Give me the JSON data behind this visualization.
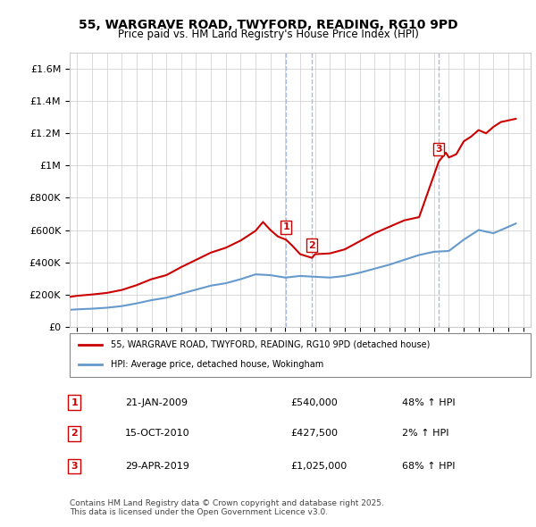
{
  "title": "55, WARGRAVE ROAD, TWYFORD, READING, RG10 9PD",
  "subtitle": "Price paid vs. HM Land Registry's House Price Index (HPI)",
  "legend_line1": "55, WARGRAVE ROAD, TWYFORD, READING, RG10 9PD (detached house)",
  "legend_line2": "HPI: Average price, detached house, Wokingham",
  "footer": "Contains HM Land Registry data © Crown copyright and database right 2025.\nThis data is licensed under the Open Government Licence v3.0.",
  "sales": [
    {
      "num": 1,
      "date": "21-JAN-2009",
      "price": 540000,
      "pct": "48%",
      "year": 2009.05
    },
    {
      "num": 2,
      "date": "15-OCT-2010",
      "price": 427500,
      "pct": "2%",
      "year": 2010.79
    },
    {
      "num": 3,
      "date": "29-APR-2019",
      "price": 1025000,
      "pct": "68%",
      "year": 2019.32
    }
  ],
  "red_color": "#cc0000",
  "blue_color": "#6699cc",
  "sale_marker_bg": "#ffffff",
  "sale_marker_border": "#cc0000",
  "dashed_color": "#aabbdd",
  "grid_color": "#cccccc",
  "ylim": [
    0,
    1700000
  ],
  "xlim_start": 1994.5,
  "xlim_end": 2025.5,
  "ytick_vals": [
    0,
    200000,
    400000,
    600000,
    800000,
    1000000,
    1200000,
    1400000,
    1600000
  ],
  "ytick_labels": [
    "£0",
    "£200K",
    "£400K",
    "£600K",
    "£800K",
    "£1M",
    "£1.2M",
    "£1.4M",
    "£1.6M"
  ],
  "xtick_years": [
    1995,
    1996,
    1997,
    1998,
    1999,
    2000,
    2001,
    2002,
    2003,
    2004,
    2005,
    2006,
    2007,
    2008,
    2009,
    2010,
    2011,
    2012,
    2013,
    2014,
    2015,
    2016,
    2017,
    2018,
    2019,
    2020,
    2021,
    2022,
    2023,
    2024,
    2025
  ],
  "hpi_years": [
    1994.5,
    1995,
    1996,
    1997,
    1998,
    1999,
    2000,
    2001,
    2002,
    2003,
    2004,
    2005,
    2006,
    2007,
    2008,
    2009,
    2010,
    2011,
    2012,
    2013,
    2014,
    2015,
    2016,
    2017,
    2018,
    2019,
    2020,
    2021,
    2022,
    2023,
    2024,
    2024.5
  ],
  "hpi_values": [
    105000,
    108000,
    112000,
    118000,
    128000,
    145000,
    165000,
    180000,
    205000,
    230000,
    255000,
    270000,
    295000,
    325000,
    320000,
    305000,
    315000,
    310000,
    305000,
    315000,
    335000,
    360000,
    385000,
    415000,
    445000,
    465000,
    470000,
    540000,
    600000,
    580000,
    620000,
    640000
  ],
  "red_years": [
    1994.5,
    1995,
    1996,
    1997,
    1998,
    1999,
    2000,
    2001,
    2002,
    2003,
    2004,
    2005,
    2006,
    2007,
    2007.5,
    2008,
    2008.5,
    2009.05,
    2009.5,
    2010,
    2010.79,
    2011,
    2012,
    2013,
    2014,
    2015,
    2016,
    2017,
    2018,
    2019.32,
    2019.8,
    2020,
    2020.5,
    2021,
    2021.5,
    2022,
    2022.5,
    2023,
    2023.5,
    2024,
    2024.5
  ],
  "red_values": [
    185000,
    192000,
    200000,
    210000,
    228000,
    258000,
    295000,
    320000,
    370000,
    415000,
    460000,
    490000,
    535000,
    595000,
    650000,
    600000,
    560000,
    540000,
    500000,
    450000,
    427500,
    450000,
    455000,
    480000,
    530000,
    580000,
    620000,
    660000,
    680000,
    1025000,
    1080000,
    1050000,
    1070000,
    1150000,
    1180000,
    1220000,
    1200000,
    1240000,
    1270000,
    1280000,
    1290000
  ]
}
